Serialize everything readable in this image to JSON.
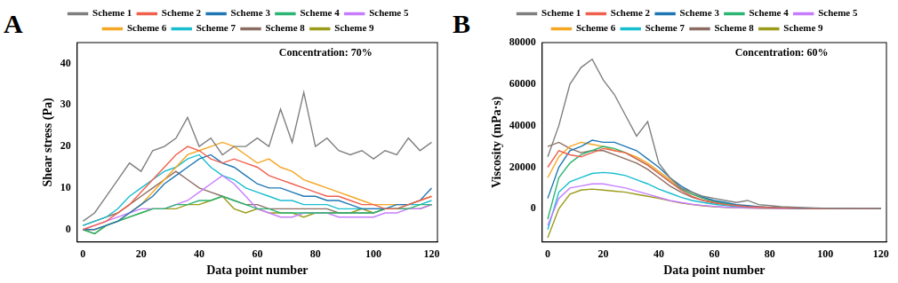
{
  "chart_data": [
    {
      "type": "line",
      "title": "A",
      "annotation": "Concentration: 70%",
      "x_label": "Data point number",
      "y_label": "Shear stress (Pa)",
      "xlim": [
        -2,
        122
      ],
      "xticks": [
        0,
        20,
        40,
        60,
        80,
        100,
        120
      ],
      "ylim": [
        -3,
        45
      ],
      "yticks": [
        0,
        10,
        20,
        30,
        40
      ],
      "grid": false,
      "legend": "top",
      "x": [
        0,
        4,
        8,
        12,
        16,
        20,
        24,
        28,
        32,
        36,
        40,
        44,
        48,
        52,
        56,
        60,
        64,
        68,
        72,
        76,
        80,
        84,
        88,
        92,
        96,
        100,
        104,
        108,
        112,
        116,
        120
      ],
      "series": [
        {
          "name": "Scheme 1",
          "color": "#7f7f7f",
          "values": [
            2,
            4,
            8,
            12,
            16,
            14,
            19,
            20,
            22,
            27,
            20,
            22,
            18,
            20,
            20,
            22,
            20,
            29,
            21,
            33,
            20,
            22,
            19,
            18,
            19,
            17,
            19,
            18,
            22,
            19,
            21
          ]
        },
        {
          "name": "Scheme 2",
          "color": "#f0604d",
          "values": [
            0,
            1,
            2,
            4,
            6,
            9,
            12,
            15,
            18,
            20,
            19,
            17,
            16,
            17,
            16,
            15,
            13,
            12,
            11,
            10,
            9,
            8,
            8,
            7,
            6,
            6,
            5,
            5,
            6,
            7,
            8
          ]
        },
        {
          "name": "Scheme 3",
          "color": "#1f77b4",
          "values": [
            0,
            0,
            1,
            2,
            4,
            6,
            8,
            11,
            13,
            15,
            17,
            18,
            16,
            15,
            13,
            11,
            10,
            10,
            9,
            8,
            8,
            7,
            7,
            6,
            5,
            5,
            5,
            6,
            6,
            7,
            10
          ]
        },
        {
          "name": "Scheme 4",
          "color": "#2bb673",
          "values": [
            0,
            -1,
            1,
            2,
            3,
            4,
            5,
            5,
            6,
            6,
            7,
            7,
            8,
            7,
            6,
            5,
            5,
            4,
            4,
            4,
            4,
            4,
            4,
            4,
            4,
            4,
            5,
            5,
            5,
            6,
            6
          ]
        },
        {
          "name": "Scheme 5",
          "color": "#c77dff",
          "values": [
            0,
            1,
            2,
            3,
            4,
            5,
            5,
            5,
            6,
            7,
            9,
            11,
            13,
            11,
            8,
            5,
            4,
            3,
            3,
            4,
            4,
            4,
            3,
            3,
            3,
            3,
            4,
            4,
            5,
            5,
            6
          ]
        },
        {
          "name": "Scheme 6",
          "color": "#f5a623",
          "values": [
            0,
            0,
            1,
            2,
            4,
            6,
            9,
            12,
            15,
            18,
            19,
            20,
            21,
            20,
            18,
            16,
            17,
            15,
            14,
            12,
            11,
            10,
            9,
            8,
            7,
            6,
            6,
            6,
            6,
            7,
            8
          ]
        },
        {
          "name": "Scheme 7",
          "color": "#17becf",
          "values": [
            1,
            2,
            3,
            5,
            8,
            10,
            12,
            14,
            15,
            17,
            18,
            15,
            13,
            12,
            10,
            9,
            8,
            7,
            7,
            6,
            6,
            6,
            5,
            5,
            5,
            5,
            5,
            5,
            6,
            6,
            7
          ]
        },
        {
          "name": "Scheme 8",
          "color": "#8c6d62",
          "values": [
            1,
            2,
            3,
            4,
            6,
            8,
            10,
            12,
            14,
            12,
            10,
            9,
            8,
            7,
            6,
            6,
            5,
            5,
            5,
            5,
            5,
            5,
            4,
            4,
            4,
            4,
            5,
            5,
            5,
            5,
            6
          ]
        },
        {
          "name": "Scheme 9",
          "color": "#9b9b1a",
          "values": [
            0,
            -1,
            1,
            2,
            3,
            4,
            5,
            5,
            5,
            6,
            6,
            7,
            8,
            5,
            4,
            5,
            4,
            4,
            4,
            3,
            4,
            4,
            4,
            4,
            5,
            4,
            5,
            5,
            5,
            5,
            6
          ]
        }
      ]
    },
    {
      "type": "line",
      "title": "B",
      "annotation": "Concentration: 60%",
      "x_label": "Data point number",
      "y_label": "Viscosity (mPa·s)",
      "xlim": [
        -2,
        122
      ],
      "xticks": [
        0,
        20,
        40,
        60,
        80,
        100,
        120
      ],
      "ylim": [
        -16000,
        80000
      ],
      "yticks": [
        0,
        20000,
        40000,
        60000,
        80000
      ],
      "grid": false,
      "legend": "top",
      "x": [
        0,
        4,
        8,
        12,
        16,
        20,
        24,
        28,
        32,
        36,
        40,
        44,
        48,
        52,
        56,
        60,
        64,
        68,
        72,
        76,
        80,
        84,
        88,
        92,
        96,
        100,
        104,
        108,
        112,
        116,
        120
      ],
      "series": [
        {
          "name": "Scheme 1",
          "color": "#7f7f7f",
          "values": [
            25000,
            40000,
            60000,
            68000,
            72000,
            62000,
            55000,
            45000,
            35000,
            42000,
            22000,
            15000,
            10000,
            8000,
            6000,
            5000,
            4000,
            3000,
            4000,
            2000,
            1500,
            1000,
            800,
            600,
            400,
            300,
            200,
            150,
            100,
            100,
            50
          ]
        },
        {
          "name": "Scheme 2",
          "color": "#f0604d",
          "values": [
            20000,
            28000,
            26000,
            25000,
            27000,
            29000,
            28000,
            27000,
            24000,
            21000,
            17000,
            13000,
            9000,
            6000,
            4000,
            3000,
            2000,
            1500,
            1000,
            800,
            600,
            400,
            300,
            200,
            150,
            100,
            80,
            60,
            50,
            40,
            30
          ]
        },
        {
          "name": "Scheme 3",
          "color": "#1f77b4",
          "values": [
            5000,
            20000,
            28000,
            30000,
            33000,
            32000,
            32000,
            30000,
            28000,
            24000,
            20000,
            15000,
            11000,
            8000,
            5500,
            4000,
            3000,
            2000,
            1500,
            1000,
            700,
            500,
            350,
            250,
            180,
            120,
            90,
            70,
            50,
            40,
            30
          ]
        },
        {
          "name": "Scheme 4",
          "color": "#2bb673",
          "values": [
            -5000,
            15000,
            22000,
            26000,
            28000,
            30000,
            29000,
            27000,
            24000,
            21000,
            17000,
            13000,
            9500,
            7000,
            5000,
            3500,
            2500,
            1800,
            1200,
            900,
            600,
            400,
            300,
            200,
            150,
            100,
            80,
            60,
            50,
            40,
            30
          ]
        },
        {
          "name": "Scheme 5",
          "color": "#c77dff",
          "values": [
            -8000,
            5000,
            10000,
            11000,
            12000,
            12000,
            11000,
            10000,
            8500,
            7000,
            5500,
            4000,
            3000,
            2200,
            1600,
            1100,
            800,
            600,
            400,
            300,
            200,
            150,
            100,
            80,
            60,
            50,
            40,
            30,
            20,
            20,
            10
          ]
        },
        {
          "name": "Scheme 6",
          "color": "#f5a623",
          "values": [
            15000,
            25000,
            30000,
            32000,
            31000,
            30000,
            28000,
            27000,
            25000,
            22000,
            18000,
            14000,
            10000,
            7000,
            5000,
            3500,
            2500,
            1800,
            1200,
            900,
            600,
            400,
            300,
            200,
            150,
            100,
            80,
            60,
            50,
            40,
            30
          ]
        },
        {
          "name": "Scheme 7",
          "color": "#17becf",
          "values": [
            -10000,
            8000,
            13000,
            15000,
            17000,
            17500,
            17000,
            16000,
            14000,
            12000,
            9500,
            7500,
            5500,
            4000,
            3000,
            2200,
            1600,
            1100,
            800,
            600,
            400,
            300,
            200,
            150,
            100,
            80,
            60,
            40,
            30,
            20,
            10
          ]
        },
        {
          "name": "Scheme 8",
          "color": "#8c6d62",
          "values": [
            30000,
            32000,
            29000,
            27000,
            28000,
            28000,
            26000,
            24000,
            22000,
            19000,
            15000,
            11000,
            8000,
            5500,
            4000,
            2800,
            2000,
            1400,
            1000,
            700,
            500,
            350,
            250,
            180,
            120,
            90,
            60,
            40,
            30,
            20,
            10
          ]
        },
        {
          "name": "Scheme 9",
          "color": "#9b9b1a",
          "values": [
            -14000,
            0,
            7000,
            9000,
            9500,
            9000,
            8500,
            8000,
            7000,
            6000,
            5000,
            3800,
            2800,
            2000,
            1400,
            1000,
            700,
            500,
            350,
            250,
            180,
            120,
            90,
            60,
            40,
            30,
            20,
            15,
            10,
            10,
            5
          ]
        }
      ]
    }
  ]
}
